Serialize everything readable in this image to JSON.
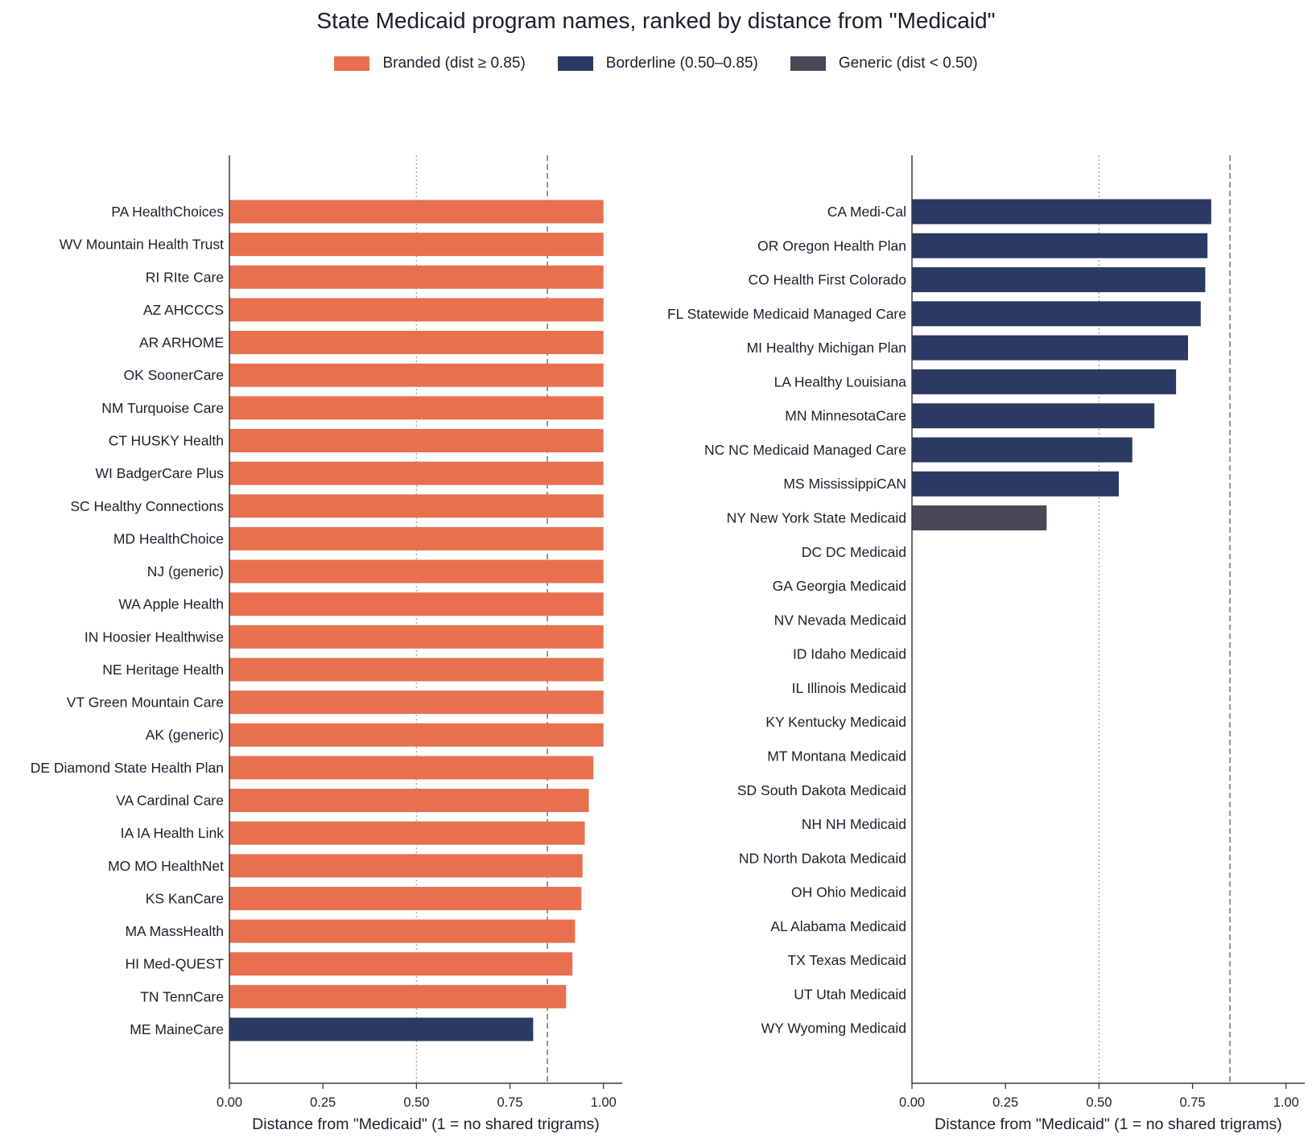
{
  "chart_data": [
    {
      "type": "bar",
      "orientation": "horizontal",
      "title": "State Medicaid program names, ranked by distance from \"Medicaid\"",
      "xlabel": "Distance from \"Medicaid\" (1 = no shared trigrams)",
      "xlim": [
        0,
        1.05
      ],
      "xticks": [
        "0.00",
        "0.25",
        "0.50",
        "0.75",
        "1.00"
      ],
      "reference_lines": [
        0.5,
        0.85
      ],
      "categories": [
        "PA  HealthChoices",
        "WV  Mountain Health Trust",
        "RI  RIte Care",
        "AZ  AHCCCS",
        "AR  ARHOME",
        "OK  SoonerCare",
        "NM  Turquoise Care",
        "CT  HUSKY Health",
        "WI  BadgerCare Plus",
        "SC  Healthy Connections",
        "MD  HealthChoice",
        "NJ  (generic)",
        "WA  Apple Health",
        "IN  Hoosier Healthwise",
        "NE  Heritage Health",
        "VT  Green Mountain Care",
        "AK  (generic)",
        "DE  Diamond State Health Plan",
        "VA  Cardinal Care",
        "IA  IA Health Link",
        "MO  MO HealthNet",
        "KS  KanCare",
        "MA  MassHealth",
        "HI  Med-QUEST",
        "TN  TennCare",
        "ME  MaineCare"
      ],
      "values": [
        1.0,
        1.0,
        1.0,
        1.0,
        1.0,
        1.0,
        1.0,
        1.0,
        1.0,
        1.0,
        1.0,
        1.0,
        1.0,
        1.0,
        1.0,
        1.0,
        1.0,
        0.973,
        0.961,
        0.95,
        0.944,
        0.941,
        0.924,
        0.917,
        0.9,
        0.812
      ],
      "groups": [
        "branded",
        "branded",
        "branded",
        "branded",
        "branded",
        "branded",
        "branded",
        "branded",
        "branded",
        "branded",
        "branded",
        "branded",
        "branded",
        "branded",
        "branded",
        "branded",
        "branded",
        "branded",
        "branded",
        "branded",
        "branded",
        "branded",
        "branded",
        "branded",
        "branded",
        "borderline"
      ]
    },
    {
      "type": "bar",
      "orientation": "horizontal",
      "xlabel": "Distance from \"Medicaid\" (1 = no shared trigrams)",
      "xlim": [
        0,
        1.05
      ],
      "xticks": [
        "0.00",
        "0.25",
        "0.50",
        "0.75",
        "1.00"
      ],
      "reference_lines": [
        0.5,
        0.85
      ],
      "categories": [
        "CA  Medi-Cal",
        "OR  Oregon Health Plan",
        "CO  Health First Colorado",
        "FL  Statewide Medicaid Managed Care",
        "MI  Healthy Michigan Plan",
        "LA  Healthy Louisiana",
        "MN  MinnesotaCare",
        "NC  NC Medicaid Managed Care",
        "MS  MississippiCAN",
        "NY  New York State Medicaid",
        "DC  DC Medicaid",
        "GA  Georgia Medicaid",
        "NV  Nevada Medicaid",
        "ID  Idaho Medicaid",
        "IL  Illinois Medicaid",
        "KY  Kentucky Medicaid",
        "MT  Montana Medicaid",
        "SD  South Dakota Medicaid",
        "NH  NH Medicaid",
        "ND  North Dakota Medicaid",
        "OH  Ohio Medicaid",
        "AL  Alabama Medicaid",
        "TX  Texas Medicaid",
        "UT  Utah Medicaid",
        "WY  Wyoming Medicaid"
      ],
      "values": [
        0.8,
        0.79,
        0.784,
        0.772,
        0.738,
        0.706,
        0.648,
        0.589,
        0.553,
        0.36,
        0,
        0,
        0,
        0,
        0,
        0,
        0,
        0,
        0,
        0,
        0,
        0,
        0,
        0,
        0
      ],
      "groups": [
        "borderline",
        "borderline",
        "borderline",
        "borderline",
        "borderline",
        "borderline",
        "borderline",
        "borderline",
        "borderline",
        "generic",
        "generic",
        "generic",
        "generic",
        "generic",
        "generic",
        "generic",
        "generic",
        "generic",
        "generic",
        "generic",
        "generic",
        "generic",
        "generic",
        "generic",
        "generic"
      ]
    }
  ],
  "legend": {
    "items": [
      {
        "key": "branded",
        "label": "Branded (dist ≥ 0.85)",
        "color": "#e8704f"
      },
      {
        "key": "borderline",
        "label": "Borderline (0.50–0.85)",
        "color": "#2a3a62"
      },
      {
        "key": "generic",
        "label": "Generic (dist < 0.50)",
        "color": "#4a4856"
      }
    ]
  },
  "colors": {
    "axis": "#3a3a46",
    "grid_dotted": "#a8a8b0",
    "threshold_dashed": "#6a6a74"
  }
}
